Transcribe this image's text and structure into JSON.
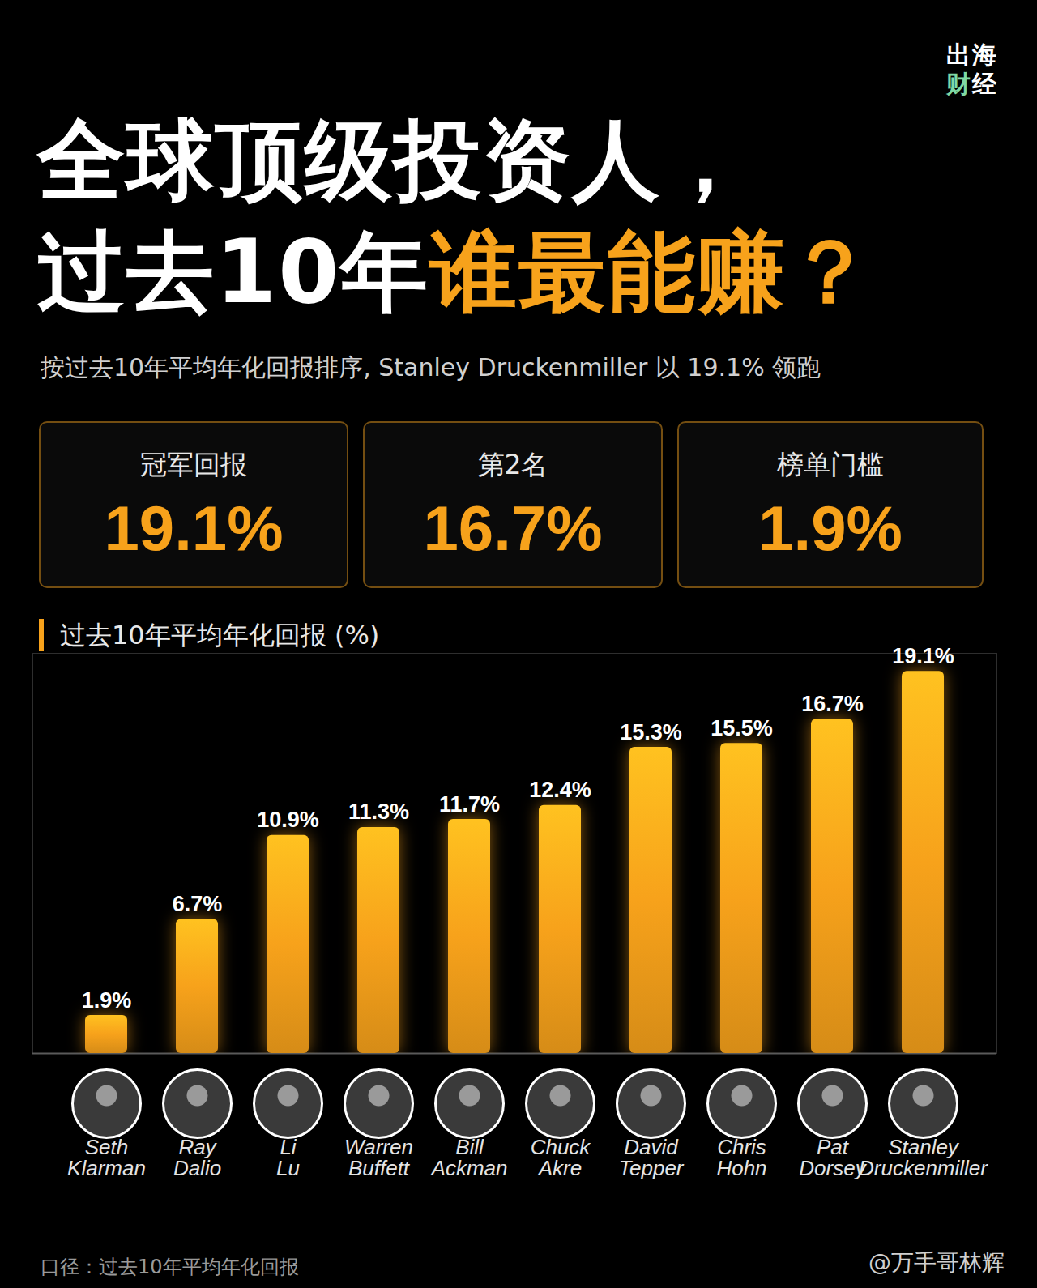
{
  "chart_data": {
    "type": "bar",
    "title": "过去10年平均年化回报 (%)",
    "categories": [
      "Seth Klarman",
      "Ray Dalio",
      "Li Lu",
      "Warren Buffett",
      "Bill Ackman",
      "Chuck Akre",
      "David Tepper",
      "Chris Hohn",
      "Pat Dorsey",
      "Stanley Druckenmiller"
    ],
    "values": [
      1.9,
      6.7,
      10.9,
      11.3,
      11.7,
      12.4,
      15.3,
      15.5,
      16.7,
      19.1
    ],
    "value_labels": [
      "1.9%",
      "6.7%",
      "10.9%",
      "11.3%",
      "11.7%",
      "12.4%",
      "15.3%",
      "15.5%",
      "16.7%",
      "19.1%"
    ],
    "color": "#f7a21b",
    "ylim": [
      0,
      20
    ],
    "data_labels": true,
    "tick_labels": "x",
    "grid": false
  },
  "header": {
    "logo": [
      "出海",
      "财经"
    ],
    "title_line1": "全球顶级投资人，",
    "title_line2": "过去10年",
    "title_highlight": "谁最能赚？",
    "subtitle": "按过去10年平均年化回报排序, Stanley Druckenmiller 以 19.1% 领跑"
  },
  "cards": [
    {
      "label": "冠军回报",
      "value": "19.1%"
    },
    {
      "label": "第2名",
      "value": "16.7%"
    },
    {
      "label": "榜单门槛",
      "value": "1.9%"
    }
  ],
  "footer": {
    "note": "口径：过去10年平均年化回报",
    "watermark": "@万手哥林辉"
  }
}
